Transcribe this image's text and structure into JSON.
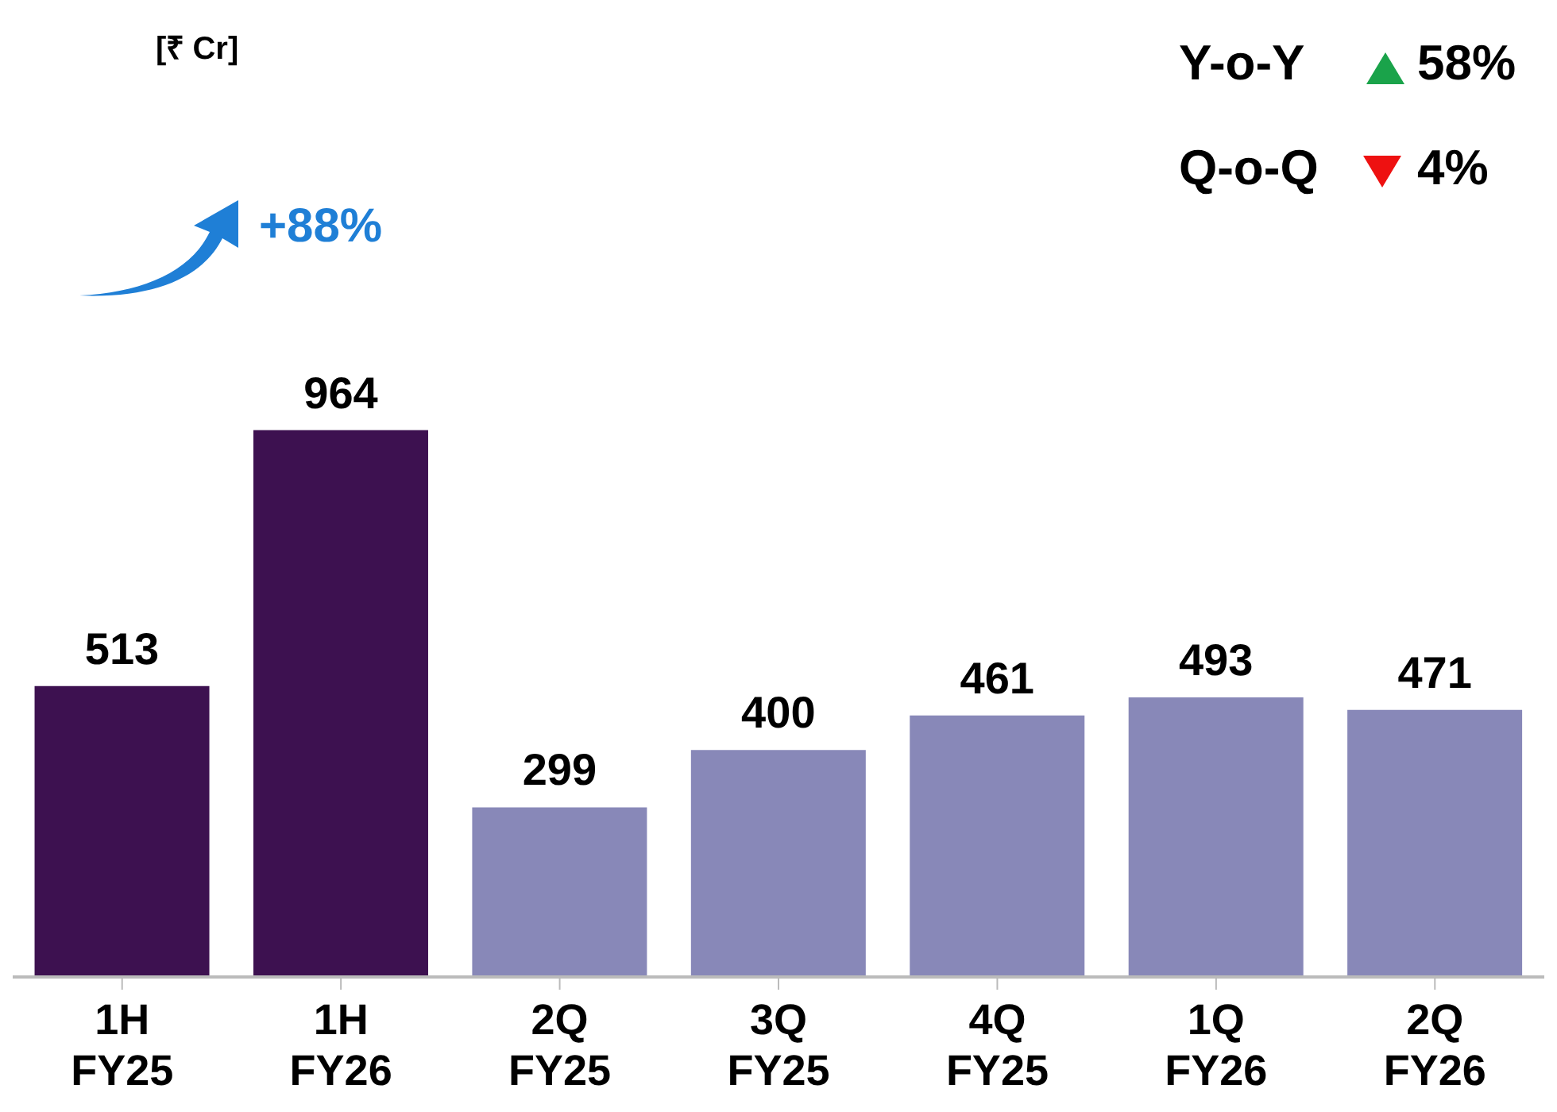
{
  "chart_data": {
    "type": "bar",
    "categories": [
      "1H\nFY25",
      "1H\nFY26",
      "2Q\nFY25",
      "3Q\nFY25",
      "4Q\nFY25",
      "1Q\nFY26",
      "2Q\nFY26"
    ],
    "values": [
      513,
      964,
      299,
      400,
      461,
      493,
      471
    ],
    "colors": [
      "#3d1150",
      "#3d1150",
      "#8888b8",
      "#8888b8",
      "#8888b8",
      "#8888b8",
      "#8888b8"
    ],
    "data_labels": true,
    "ylim": [
      0,
      1700
    ],
    "tick_labels": "x",
    "annotations": [
      "[₹ Cr]",
      "+88%",
      "Y-o-Y",
      "58%",
      "Q-o-Q",
      "4%"
    ]
  }
}
